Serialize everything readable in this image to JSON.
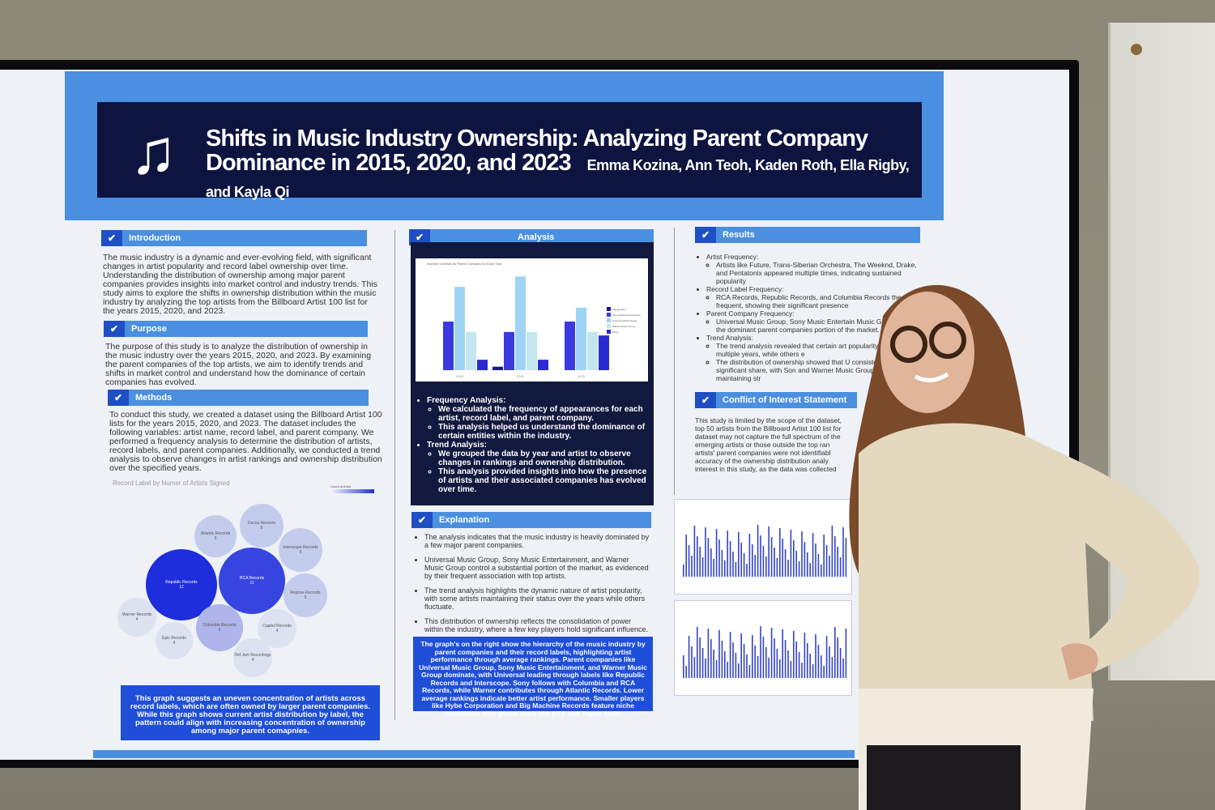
{
  "poster": {
    "title": "Shifts in Music Industry Ownership: Analyzing Parent Company Dominance in 2015, 2020, and 2023",
    "authors": "Emma Kozina, Ann Teoh, Kaden Roth, Ella Rigby, and Kayla Qi",
    "sections": {
      "introduction": {
        "heading": "Introduction",
        "body": "The music industry is a dynamic and ever-evolving field, with significant changes in artist popularity and record label ownership over time. Understanding the distribution of ownership among major parent companies provides insights into market control and industry trends. This study aims to explore the shifts in ownership distribution within the music industry by analyzing the top artists from the Billboard Artist 100 list for the years 2015, 2020, and 2023."
      },
      "purpose": {
        "heading": "Purpose",
        "body": "The purpose of this study is to analyze the distribution of ownership in the music industry over the years 2015, 2020, and 2023. By examining the parent companies of the top artists, we aim to identify trends and shifts in market control and understand how the dominance of certain companies has evolved."
      },
      "methods": {
        "heading": "Methods",
        "body": "To conduct this study, we created a dataset using the Billboard Artist 100 lists for the years 2015, 2020, and 2023. The dataset includes the following variables: artist name, record label, and parent company. We performed a frequency analysis to determine the distribution of artists, record labels, and parent companies. Additionally, we conducted a trend analysis to observe changes in artist rankings and ownership distribution over the specified years."
      },
      "bubble_chart": {
        "title": "Record Label by Numer of Artists Signed",
        "legend_title": "Count of Artist",
        "legend_min": "4",
        "legend_max": "12",
        "labels": [
          {
            "name": "Republic Records",
            "count": "12"
          },
          {
            "name": "RCA Records",
            "count": "11"
          },
          {
            "name": "Columbia Records",
            "count": "6"
          },
          {
            "name": "Atlantic Records",
            "count": "5"
          },
          {
            "name": "Decca Records",
            "count": "5"
          },
          {
            "name": "Interscope Records",
            "count": "5"
          },
          {
            "name": "Reprise Records",
            "count": "5"
          },
          {
            "name": "Warner Records",
            "count": "4"
          },
          {
            "name": "Epic Records",
            "count": "4"
          },
          {
            "name": "Capitol Records",
            "count": "4"
          },
          {
            "name": "Def Jam Recordings",
            "count": "4"
          }
        ]
      },
      "left_callout": "This graph suggests an uneven concentration of artists across record labels, which are often owned by larger parent companies. While this graph shows current artist distribution by label, the pattern could align with increasing concentration of ownership among major parent comapnies.",
      "analysis": {
        "heading": "Analysis",
        "chart": {
          "title": "Number of Artists by Parent Company for Each Year",
          "xlabel": "Year",
          "ylabel": "Number of Artists",
          "legend_title": "Parent Company",
          "categories": [
            "2015",
            "2020",
            "2023"
          ],
          "series": [
            {
              "name": "Independent",
              "color": "#1a1a8c",
              "values": [
                0,
                1,
                0
              ]
            },
            {
              "name": "Sony Music Entertainment",
              "color": "#3a3ae0",
              "values": [
                14,
                11,
                14
              ]
            },
            {
              "name": "Universal Music Group",
              "color": "#9fd4f5",
              "values": [
                24,
                27,
                18
              ]
            },
            {
              "name": "Warner Music Group",
              "color": "#c3e6f0",
              "values": [
                11,
                11,
                11
              ]
            },
            {
              "name": "Other",
              "color": "#2a2ad0",
              "values": [
                3,
                3,
                10
              ]
            }
          ]
        },
        "items": [
          {
            "head": "Frequency Analysis:",
            "subs": [
              "We calculated the frequency of appearances for each artist, record label, and parent company.",
              "This analysis helped us understand the dominance of certain entities within the industry."
            ]
          },
          {
            "head": "Trend Analysis:",
            "subs": [
              "We grouped the data by year and artist to observe changes in rankings and ownership distribution.",
              "This analysis provided insights into how the presence of artists and their associated companies has evolved over time."
            ]
          }
        ]
      },
      "explanation": {
        "heading": "Explanation",
        "items": [
          "The analysis indicates that the music industry is heavily dominated by a few major parent companies.",
          "Universal Music Group, Sony Music Entertainment, and Warner Music Group control a substantial portion of the market, as evidenced by their frequent association with top artists.",
          "The trend analysis highlights the dynamic nature of artist popularity, with some artists maintaining their status over the years while others fluctuate.",
          "This distribution of ownership reflects the consolidation of power within the industry, where a few key players hold significant influence."
        ]
      },
      "mid_callout": "The graph's on the right show the hierarchy of the music industry by parent companies and their record labels, highlighting artist performance through average rankings. Parent companies like Universal Music Group, Sony Music Entertainment, and Warner Music Group dominate, with Universal leading through labels like Republic Records and Interscope. Sony follows with Columbia and RCA Records, while Warner contributes through Atlantic Records. Lower average rankings indicate better artist performance. Smaller players like Hybe Corporation and Big Machine Records feature niche dominance with global stars like BTS and Taylor Swift.",
      "results": {
        "heading": "Results",
        "items": [
          {
            "head": "Artist Frequency:",
            "subs": [
              "Artists like Future, Trans-Siberian Orchestra, The Weeknd, Drake, and Pentatonix appeared multiple times, indicating sustained popularity"
            ]
          },
          {
            "head": "Record Label Frequency:",
            "subs": [
              "RCA Records, Republic Records, and Columbia Records the most frequent, showing their significant presence"
            ]
          },
          {
            "head": "Parent Company Frequency:",
            "subs": [
              "Universal Music Group, Sony Music Entertain Music Group were the dominant parent companies portion of the market."
            ]
          },
          {
            "head": "Trend Analysis:",
            "subs": [
              "The trend analysis revealed that certain art popularity across multiple years, while others e",
              "The distribution of ownership showed that U consistently held a significant share, with Son and Warner Music Group also maintaining str"
            ]
          }
        ]
      },
      "conflict": {
        "heading": "Conflict of Interest Statement",
        "body": "This study is limited by the scope of the dataset, top 50 artists from the Billboard Artist 100 list for dataset may not capture the full spectrum of the emerging artists or those outside the top ran artists' parent companies were not identifiabl accuracy of the ownership distribution analy interest in this study, as the data was collected"
      }
    }
  },
  "colors": {
    "accent_blue": "#4a8fe0",
    "dark_navy": "#0d1440",
    "callout_blue": "#1f4fd8"
  }
}
